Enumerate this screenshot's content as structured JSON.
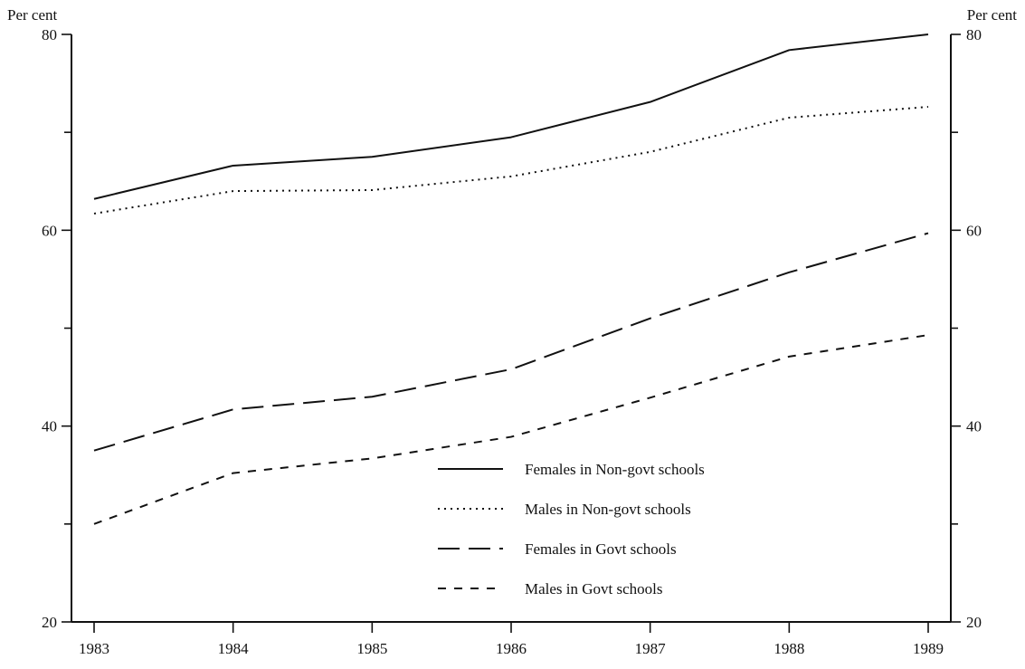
{
  "chart_data": {
    "type": "line",
    "title": "",
    "xlabel": "",
    "ylabel": "Per cent",
    "ylabel_right": "Per cent",
    "x": [
      "1983",
      "1984",
      "1985",
      "1986",
      "1987",
      "1988",
      "1989"
    ],
    "ylim": [
      20,
      80
    ],
    "y_major_ticks": [
      20,
      40,
      60,
      80
    ],
    "y_minor_ticks": [
      30,
      50,
      70
    ],
    "grid": false,
    "legend_position": "center-bottom",
    "series": [
      {
        "name": "Females in Non-govt schools",
        "dash": "solid",
        "values": [
          63.2,
          66.6,
          67.5,
          69.5,
          73.1,
          78.4,
          80.0
        ]
      },
      {
        "name": "Males in Non-govt schools",
        "dash": "dotted",
        "values": [
          61.7,
          64.0,
          64.1,
          65.5,
          68.0,
          71.5,
          72.6
        ]
      },
      {
        "name": "Females in Govt schools",
        "dash": "longdash",
        "values": [
          37.5,
          41.7,
          43.0,
          45.8,
          51.0,
          55.7,
          59.7
        ]
      },
      {
        "name": "Males in Govt schools",
        "dash": "shortdash",
        "values": [
          30.0,
          35.2,
          36.7,
          38.9,
          42.9,
          47.1,
          49.3
        ]
      }
    ]
  }
}
